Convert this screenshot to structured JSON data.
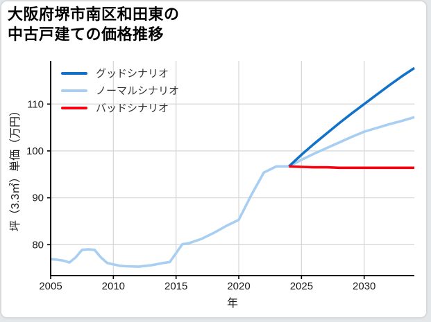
{
  "card": {
    "title_line1": "大阪府堺市南区和田東の",
    "title_line2": "中古戸建ての価格推移"
  },
  "chart_data": {
    "type": "line",
    "title": "大阪府堺市南区和田東の中古戸建ての価格推移",
    "xlabel": "年",
    "ylabel": "坪（3.3㎡）単価（万円）",
    "xlim": [
      2005,
      2034
    ],
    "ylim": [
      73.4,
      119.2
    ],
    "xticks": [
      2005,
      2010,
      2015,
      2020,
      2025,
      2030
    ],
    "yticks": [
      80,
      90,
      100,
      110
    ],
    "grid": true,
    "legend_position": "upper-left",
    "y_unit": "万円",
    "series": [
      {
        "name": "グッドシナリオ",
        "color": "#1072c8",
        "x": [
          2024,
          2025,
          2026,
          2027,
          2028,
          2029,
          2030,
          2031,
          2032,
          2033,
          2034
        ],
        "values": [
          96.7,
          99.2,
          101.5,
          103.7,
          105.9,
          108.0,
          110.0,
          112.0,
          114.0,
          115.9,
          117.7
        ]
      },
      {
        "name": "ノーマルシナリオ",
        "color": "#a8cef2",
        "x": [
          2005,
          2005.5,
          2006,
          2006.5,
          2007,
          2007.5,
          2008,
          2008.5,
          2009,
          2009.5,
          2010,
          2010.5,
          2011,
          2012,
          2013,
          2014,
          2014.5,
          2015,
          2015.5,
          2016,
          2017,
          2018,
          2019,
          2020,
          2021,
          2022,
          2023,
          2024,
          2025,
          2026,
          2027,
          2028,
          2029,
          2030,
          2031,
          2032,
          2033,
          2034
        ],
        "values": [
          76.9,
          76.8,
          76.6,
          76.2,
          77.3,
          78.9,
          79.0,
          78.9,
          77.3,
          76.1,
          75.8,
          75.5,
          75.4,
          75.3,
          75.6,
          76.1,
          76.3,
          78.2,
          80.1,
          80.3,
          81.2,
          82.5,
          84.0,
          85.3,
          90.6,
          95.4,
          96.7,
          96.7,
          98.1,
          99.4,
          100.6,
          101.8,
          103.0,
          104.1,
          104.9,
          105.7,
          106.4,
          107.2
        ]
      },
      {
        "name": "バッドシナリオ",
        "color": "#f20511",
        "x": [
          2024,
          2025,
          2026,
          2027,
          2028,
          2029,
          2030,
          2031,
          2032,
          2033,
          2034
        ],
        "values": [
          96.7,
          96.6,
          96.5,
          96.5,
          96.4,
          96.4,
          96.4,
          96.4,
          96.4,
          96.4,
          96.4
        ]
      }
    ]
  }
}
